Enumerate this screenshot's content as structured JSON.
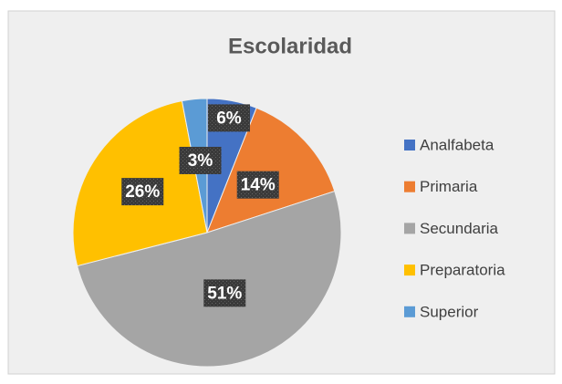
{
  "chart_data": {
    "type": "pie",
    "title": "Escolaridad",
    "categories": [
      "Analfabeta",
      "Primaria",
      "Secundaria",
      "Preparatoria",
      "Superior"
    ],
    "values": [
      6,
      14,
      51,
      26,
      3
    ],
    "value_labels": [
      "6%",
      "14%",
      "51%",
      "26%",
      "3%"
    ],
    "colors": [
      "#4472c4",
      "#ed7d31",
      "#a5a5a5",
      "#ffc000",
      "#5b9bd5"
    ],
    "legend": "right"
  }
}
